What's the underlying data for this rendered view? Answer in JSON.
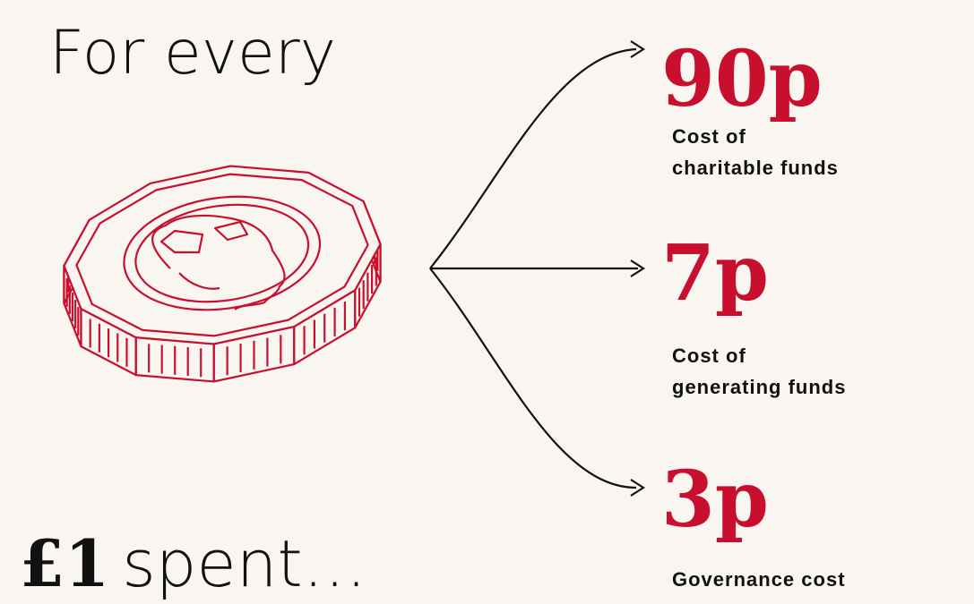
{
  "heading": {
    "top": "For every",
    "amount": "£1",
    "bottom": "spent…"
  },
  "items": [
    {
      "amount": "90p",
      "label": [
        "Cost of",
        "charitable funds"
      ]
    },
    {
      "amount": "7p",
      "label": [
        "Cost of",
        "generating funds"
      ]
    },
    {
      "amount": "3p",
      "label": [
        "Governance cost"
      ]
    }
  ]
}
